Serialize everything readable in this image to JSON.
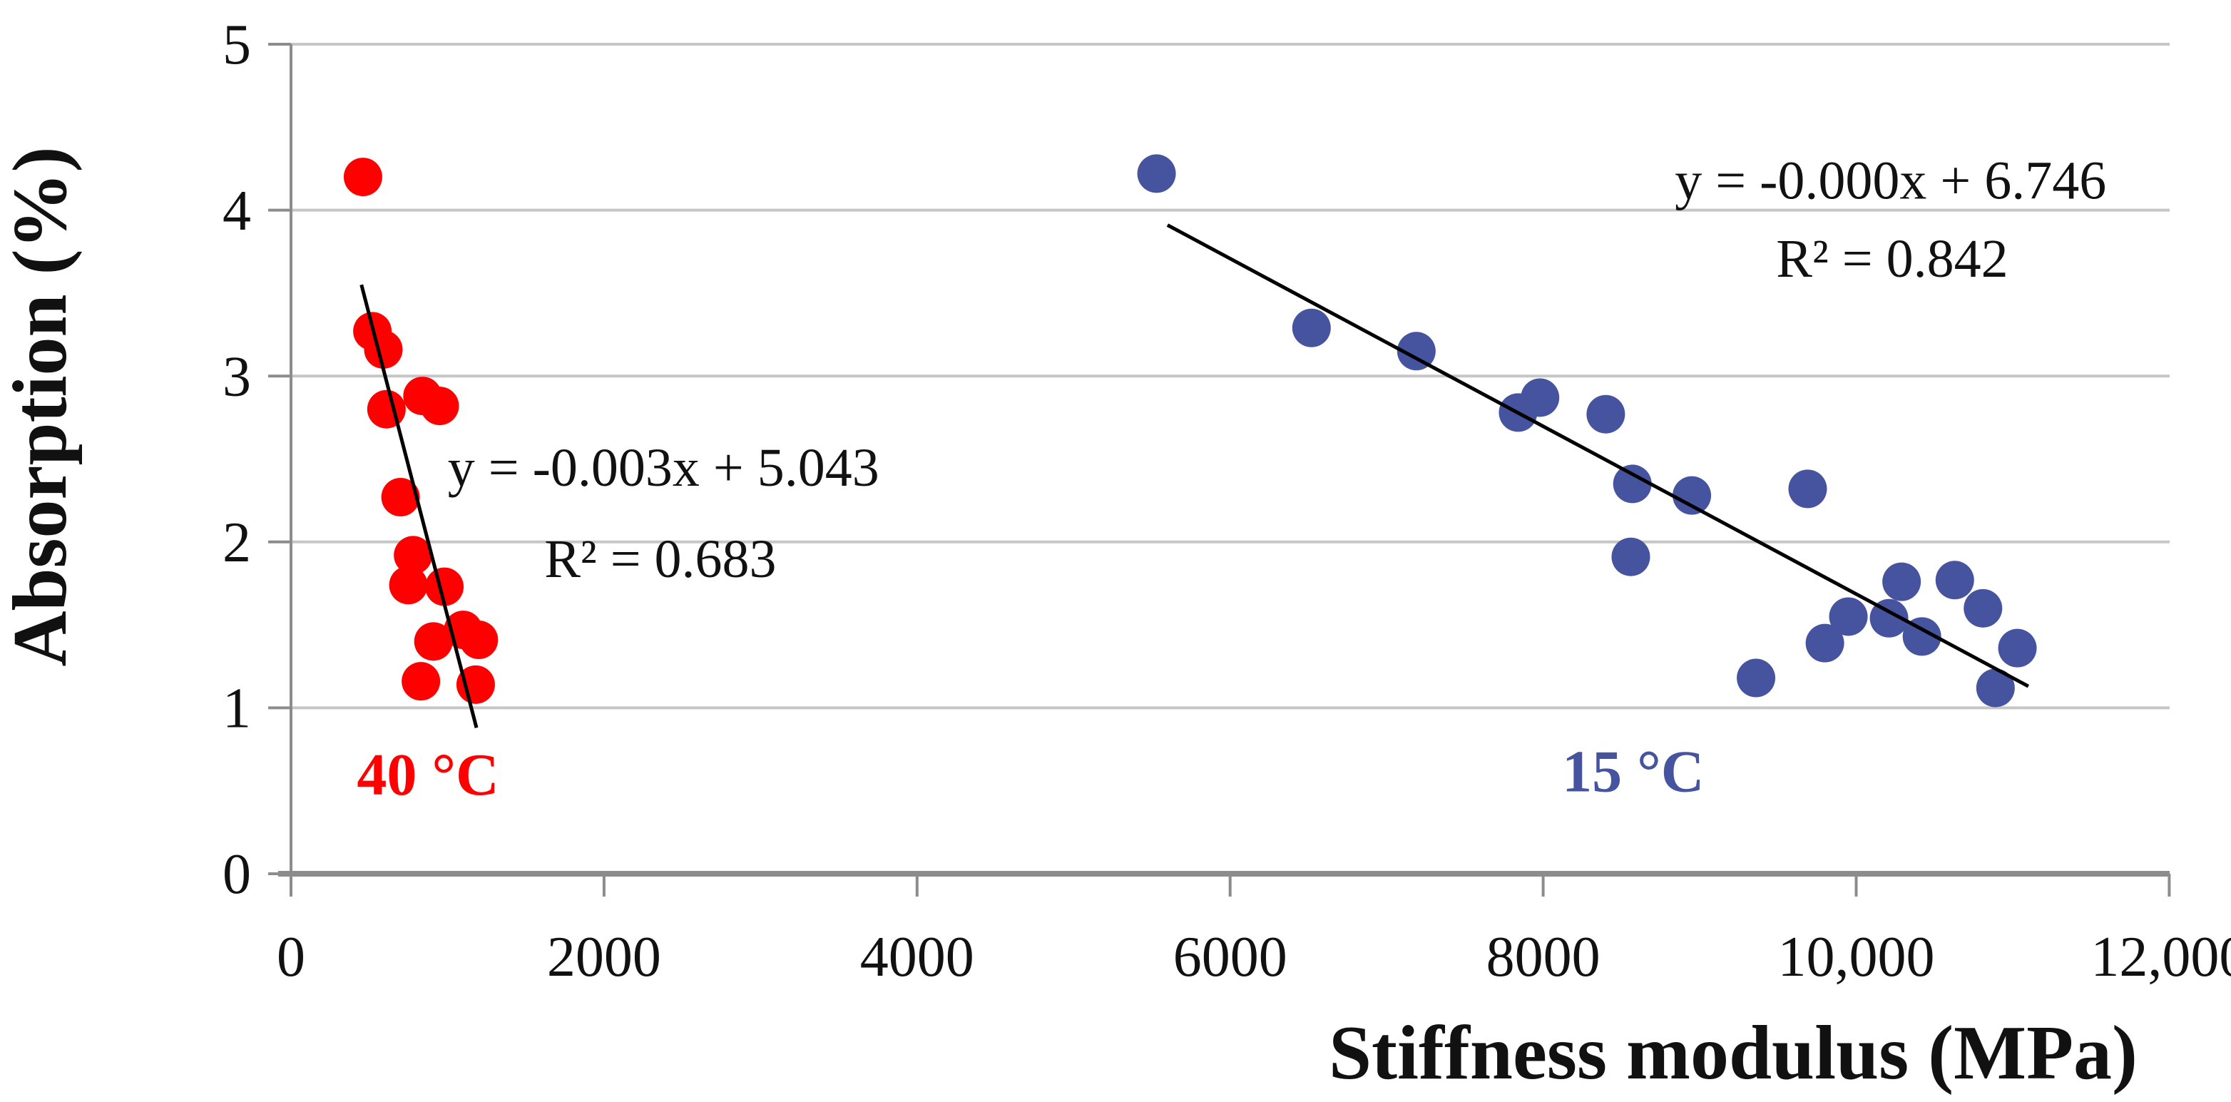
{
  "figure": {
    "background": "#ffffff",
    "text_color": "#111111",
    "gridline_color": "#c6c6c6",
    "axis_color": "#8c8c8c",
    "trendline_color": "#000000"
  },
  "chart_data": {
    "type": "scatter",
    "title": "",
    "xlabel": "Stiffness modulus (MPa)",
    "ylabel": "Absorption (%)",
    "xlim": [
      0,
      12000
    ],
    "ylim": [
      0,
      5
    ],
    "grid": "horizontal-only",
    "legend_position": "none",
    "x_ticks": {
      "values": [
        0,
        2000,
        4000,
        6000,
        8000,
        10000,
        12000
      ],
      "labels": [
        "0",
        "2000",
        "4000",
        "6000",
        "8000",
        "10,000",
        "12,000"
      ]
    },
    "y_ticks": {
      "values": [
        0,
        1,
        2,
        3,
        4,
        5
      ],
      "labels": [
        "0",
        "1",
        "2",
        "3",
        "4",
        "5"
      ]
    },
    "series": [
      {
        "name": "40 °C",
        "color": "#fe0000",
        "marker": "circle",
        "points": [
          [
            460,
            4.2
          ],
          [
            520,
            3.27
          ],
          [
            590,
            3.16
          ],
          [
            610,
            2.8
          ],
          [
            840,
            2.88
          ],
          [
            950,
            2.82
          ],
          [
            700,
            2.27
          ],
          [
            780,
            1.92
          ],
          [
            750,
            1.74
          ],
          [
            980,
            1.73
          ],
          [
            910,
            1.4
          ],
          [
            1100,
            1.47
          ],
          [
            1200,
            1.41
          ],
          [
            830,
            1.16
          ],
          [
            1180,
            1.14
          ]
        ],
        "trendline": {
          "equation": "y = -0.003x + 5.043",
          "r_squared": "R² = 0.683",
          "from": [
            450,
            3.55
          ],
          "to": [
            1185,
            0.88
          ]
        },
        "annotations": {
          "series_label": {
            "text": "40 °C",
            "x": 875,
            "y": 0.6
          },
          "equation_pos": {
            "x": 2380,
            "y": 2.45
          },
          "r_squared_pos": {
            "x": 2360,
            "y": 1.9
          }
        }
      },
      {
        "name": "15 °C",
        "color": "#46549f",
        "marker": "circle",
        "points": [
          [
            5530,
            4.22
          ],
          [
            6520,
            3.29
          ],
          [
            7190,
            3.15
          ],
          [
            7840,
            2.78
          ],
          [
            7980,
            2.87
          ],
          [
            8400,
            2.77
          ],
          [
            8570,
            2.35
          ],
          [
            8950,
            2.28
          ],
          [
            9690,
            2.32
          ],
          [
            8560,
            1.91
          ],
          [
            9360,
            1.18
          ],
          [
            9800,
            1.39
          ],
          [
            9950,
            1.55
          ],
          [
            10210,
            1.54
          ],
          [
            10290,
            1.76
          ],
          [
            10420,
            1.43
          ],
          [
            10630,
            1.77
          ],
          [
            10810,
            1.6
          ],
          [
            11030,
            1.36
          ],
          [
            10890,
            1.12
          ]
        ],
        "trendline": {
          "equation": "y = -0.000x + 6.746",
          "r_squared": "R² = 0.842",
          "from": [
            5600,
            3.91
          ],
          "to": [
            11100,
            1.13
          ]
        },
        "annotations": {
          "series_label": {
            "text": "15 °C",
            "x": 8575,
            "y": 0.62
          },
          "equation_pos": {
            "x": 10220,
            "y": 4.18
          },
          "r_squared_pos": {
            "x": 10230,
            "y": 3.71
          }
        }
      }
    ]
  }
}
